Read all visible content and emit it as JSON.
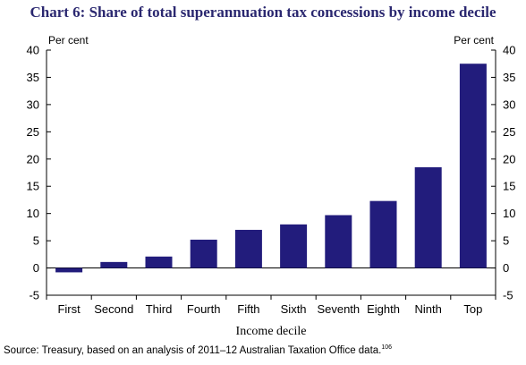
{
  "title": "Chart 6: Share of total superannuation tax concessions by income decile",
  "source_text": "Source: Treasury, based on an analysis of 2011–12 Australian Taxation Office data.",
  "source_footnote": "106",
  "chart_data": {
    "type": "bar",
    "categories": [
      "First",
      "Second",
      "Third",
      "Fourth",
      "Fifth",
      "Sixth",
      "Seventh",
      "Eighth",
      "Ninth",
      "Top"
    ],
    "series": [
      {
        "values": [
          -0.8,
          1.1,
          2.1,
          5.2,
          7.0,
          8.0,
          9.7,
          12.3,
          18.5,
          37.5
        ]
      }
    ],
    "xlabel": "Income decile",
    "ylabel_left": "Per cent",
    "ylabel_right": "Per cent",
    "ylim": [
      -5,
      40
    ],
    "yticks": [
      40,
      35,
      30,
      25,
      20,
      15,
      10,
      5,
      0,
      -5
    ],
    "grid": false,
    "legend": "none",
    "bar_color": "#221c7c",
    "title_color": "#2b2870"
  }
}
